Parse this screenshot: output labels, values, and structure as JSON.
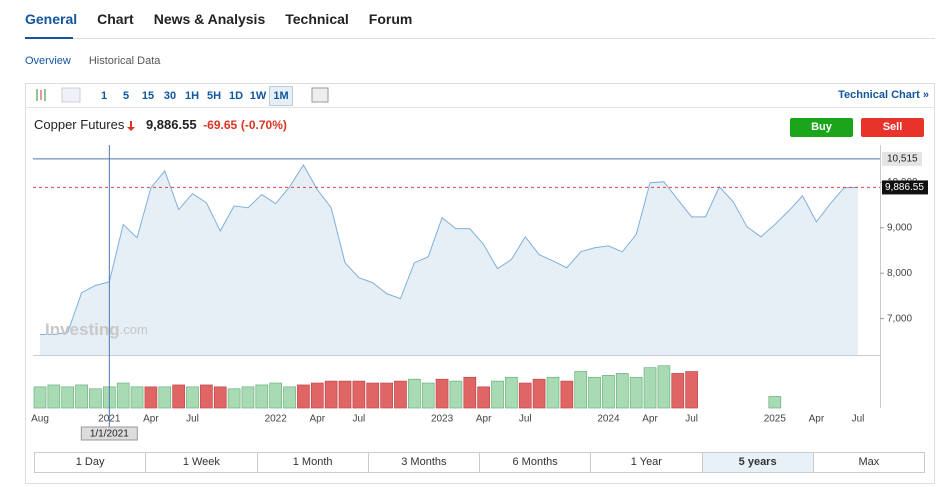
{
  "nav": {
    "tabs": [
      "General",
      "Chart",
      "News & Analysis",
      "Technical",
      "Forum"
    ]
  },
  "subnav": {
    "tabs": [
      "Overview",
      "Historical Data"
    ]
  },
  "toolbar": {
    "intervals": [
      "1",
      "5",
      "15",
      "30",
      "1H",
      "5H",
      "1D",
      "1W",
      "1M"
    ],
    "link": "Technical Chart »"
  },
  "quote": {
    "name": "Copper Futures",
    "price": "9,886.55",
    "change": "-69.65",
    "change_pct": "(-0.70%)"
  },
  "buttons": [
    "Buy",
    "Sell"
  ],
  "ranges": [
    "1 Day",
    "1 Week",
    "1 Month",
    "3 Months",
    "6 Months",
    "1 Year",
    "5 years",
    "Max"
  ],
  "chart_data": {
    "type": "area",
    "color": "#7fb0dc",
    "fill": "#e6eef6",
    "categories": [
      "Aug",
      null,
      null,
      null,
      null,
      "2021",
      null,
      null,
      "Apr",
      null,
      null,
      "Jul",
      null,
      null,
      null,
      null,
      null,
      "2022",
      null,
      null,
      "Apr",
      null,
      null,
      "Jul",
      null,
      null,
      null,
      null,
      null,
      "2023",
      null,
      null,
      "Apr",
      null,
      null,
      "Jul",
      null,
      null,
      null,
      null,
      null,
      "2024",
      null,
      null,
      "Apr",
      null,
      null,
      "Jul",
      null,
      null,
      null,
      null,
      null,
      "2025",
      null,
      null,
      "Apr",
      null,
      null,
      "Jul"
    ],
    "values": [
      6650,
      6650,
      6700,
      7570,
      7730,
      7810,
      9070,
      8780,
      9880,
      10250,
      9400,
      9750,
      9550,
      8930,
      9480,
      9440,
      9730,
      9530,
      9900,
      10380,
      9840,
      9440,
      8230,
      7900,
      7790,
      7550,
      7440,
      8230,
      8360,
      9220,
      8980,
      8980,
      8630,
      8100,
      8300,
      8800,
      8410,
      8270,
      8120,
      8470,
      8560,
      8600,
      8470,
      8850,
      9990,
      10010,
      9620,
      9240,
      9240,
      9900,
      9570,
      9020,
      8800,
      9070,
      9370,
      9700,
      9130,
      9530,
      9880,
      9887
    ],
    "ylim": [
      6200,
      10820
    ],
    "yticks": [
      {
        "value": 7000,
        "label": "7,000"
      },
      {
        "value": 8000,
        "label": "8,000"
      },
      {
        "value": 9000,
        "label": "9,000"
      },
      {
        "value": 10000,
        "label": "10,000"
      }
    ],
    "volume": {
      "vlim": [
        0,
        50
      ],
      "values": [
        22,
        24,
        22,
        24,
        20,
        22,
        26,
        22,
        22,
        22,
        24,
        22,
        24,
        22,
        20,
        22,
        24,
        26,
        22,
        24,
        26,
        28,
        28,
        28,
        26,
        26,
        28,
        30,
        26,
        30,
        28,
        32,
        22,
        28,
        32,
        26,
        30,
        32,
        28,
        38,
        32,
        34,
        36,
        32,
        42,
        44,
        36,
        38,
        null,
        null,
        null,
        null,
        null,
        12,
        null,
        null,
        null,
        null,
        null,
        null
      ],
      "colors": [
        "#a8dbb4",
        "#a8dbb4",
        "#a8dbb4",
        "#a8dbb4",
        "#a8dbb4",
        "#a8dbb4",
        "#a8dbb4",
        "#a8dbb4",
        "#e06666",
        "#a8dbb4",
        "#e06666",
        "#a8dbb4",
        "#e06666",
        "#e06666",
        "#a8dbb4",
        "#a8dbb4",
        "#a8dbb4",
        "#a8dbb4",
        "#a8dbb4",
        "#e06666",
        "#e06666",
        "#e06666",
        "#e06666",
        "#e06666",
        "#e06666",
        "#e06666",
        "#e06666",
        "#a8dbb4",
        "#a8dbb4",
        "#e06666",
        "#a8dbb4",
        "#e06666",
        "#e06666",
        "#a8dbb4",
        "#a8dbb4",
        "#e06666",
        "#e06666",
        "#a8dbb4",
        "#e06666",
        "#a8dbb4",
        "#a8dbb4",
        "#a8dbb4",
        "#a8dbb4",
        "#a8dbb4",
        "#a8dbb4",
        "#a8dbb4",
        "#e06666",
        "#e06666",
        null,
        null,
        null,
        null,
        null,
        "#a8dbb4",
        null,
        null,
        null,
        null,
        null,
        null
      ]
    },
    "crosshair": {
      "x_category": "2021",
      "x_label": "1/1/2021",
      "y": {
        "value": 10515,
        "label": "10,515"
      }
    },
    "last_price": {
      "value": 9886.55,
      "label": "9,886.55"
    },
    "watermark": [
      "Investing",
      ".com"
    ]
  }
}
